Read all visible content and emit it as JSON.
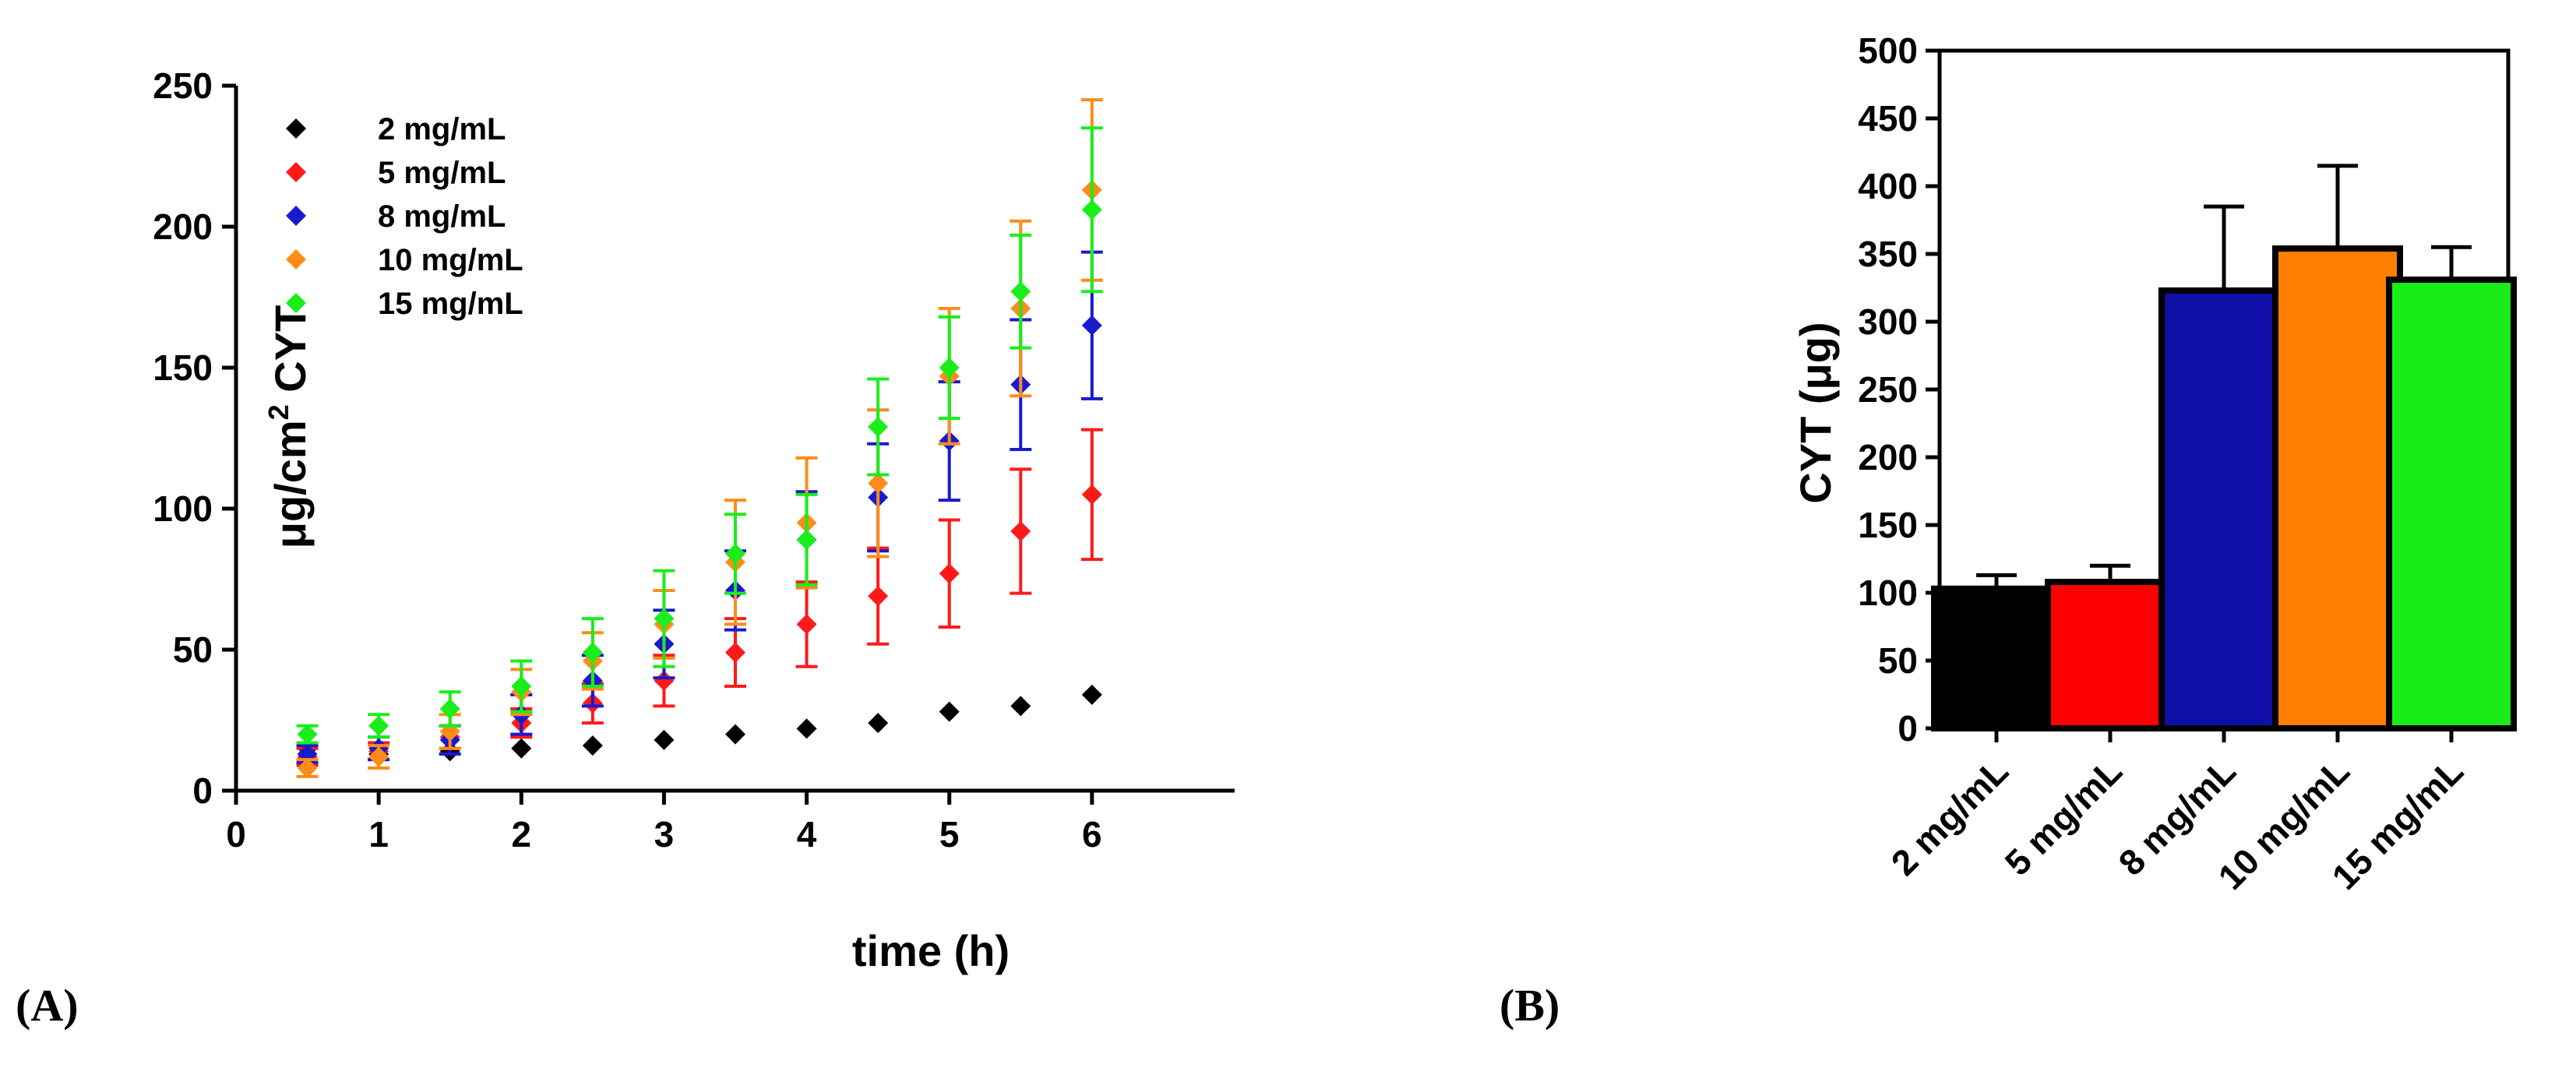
{
  "chart_data": [
    {
      "type": "scatter",
      "panel_label": "(A)",
      "xlabel": "time (h)",
      "ylabel_main": "μg/cm",
      "ylabel_sup": "2",
      "ylabel_rest": " CYT",
      "xlim": [
        0,
        7
      ],
      "ylim": [
        0,
        250
      ],
      "xticks": [
        0,
        1,
        2,
        3,
        4,
        5,
        6
      ],
      "yticks": [
        0,
        50,
        100,
        150,
        200,
        250
      ],
      "legend_position": "top-left",
      "x": [
        0.5,
        1,
        1.5,
        2,
        2.5,
        3,
        3.5,
        4,
        4.5,
        5,
        5.5,
        6
      ],
      "series": [
        {
          "name": "2 mg/mL",
          "color": "#000000",
          "values": [
            15,
            13,
            14,
            15,
            16,
            18,
            20,
            22,
            24,
            28,
            30,
            34
          ],
          "errors": [
            0,
            0,
            0,
            0,
            0,
            0,
            0,
            0,
            0,
            0,
            0,
            0
          ]
        },
        {
          "name": "5 mg/mL",
          "color": "#ff1a1a",
          "values": [
            12,
            14,
            19,
            24,
            31,
            39,
            49,
            59,
            69,
            77,
            92,
            105
          ],
          "errors": [
            3,
            3,
            4,
            5,
            7,
            9,
            12,
            15,
            17,
            19,
            22,
            23
          ]
        },
        {
          "name": "8 mg/mL",
          "color": "#1a1acd",
          "values": [
            13,
            15,
            18,
            27,
            39,
            52,
            71,
            89,
            104,
            124,
            144,
            165
          ],
          "errors": [
            3,
            4,
            5,
            7,
            9,
            12,
            14,
            17,
            19,
            21,
            23,
            26
          ]
        },
        {
          "name": "10 mg/mL",
          "color": "#ff8c1a",
          "values": [
            8,
            12,
            21,
            35,
            46,
            59,
            81,
            95,
            109,
            147,
            171,
            213
          ],
          "errors": [
            3,
            4,
            6,
            8,
            10,
            12,
            22,
            23,
            26,
            24,
            31,
            32
          ]
        },
        {
          "name": "15 mg/mL",
          "color": "#1aee1a",
          "values": [
            20,
            23,
            29,
            37,
            49,
            61,
            84,
            89,
            129,
            150,
            177,
            206
          ],
          "errors": [
            3,
            4,
            6,
            9,
            12,
            17,
            14,
            16,
            17,
            18,
            20,
            29
          ]
        }
      ]
    },
    {
      "type": "bar",
      "panel_label": "(B)",
      "ylabel": "CYT (μg)",
      "ylim": [
        0,
        500
      ],
      "yticks": [
        0,
        50,
        100,
        150,
        200,
        250,
        300,
        350,
        400,
        450,
        500
      ],
      "categories": [
        "2 mg/mL",
        "5 mg/mL",
        "8 mg/mL",
        "10 mg/mL",
        "15 mg/mL"
      ],
      "values": [
        103,
        108,
        323,
        354,
        331
      ],
      "errors": [
        10,
        12,
        62,
        61,
        24
      ],
      "colors": [
        "#000000",
        "#ff0000",
        "#0f0fa8",
        "#ff8000",
        "#19ec19"
      ]
    }
  ]
}
